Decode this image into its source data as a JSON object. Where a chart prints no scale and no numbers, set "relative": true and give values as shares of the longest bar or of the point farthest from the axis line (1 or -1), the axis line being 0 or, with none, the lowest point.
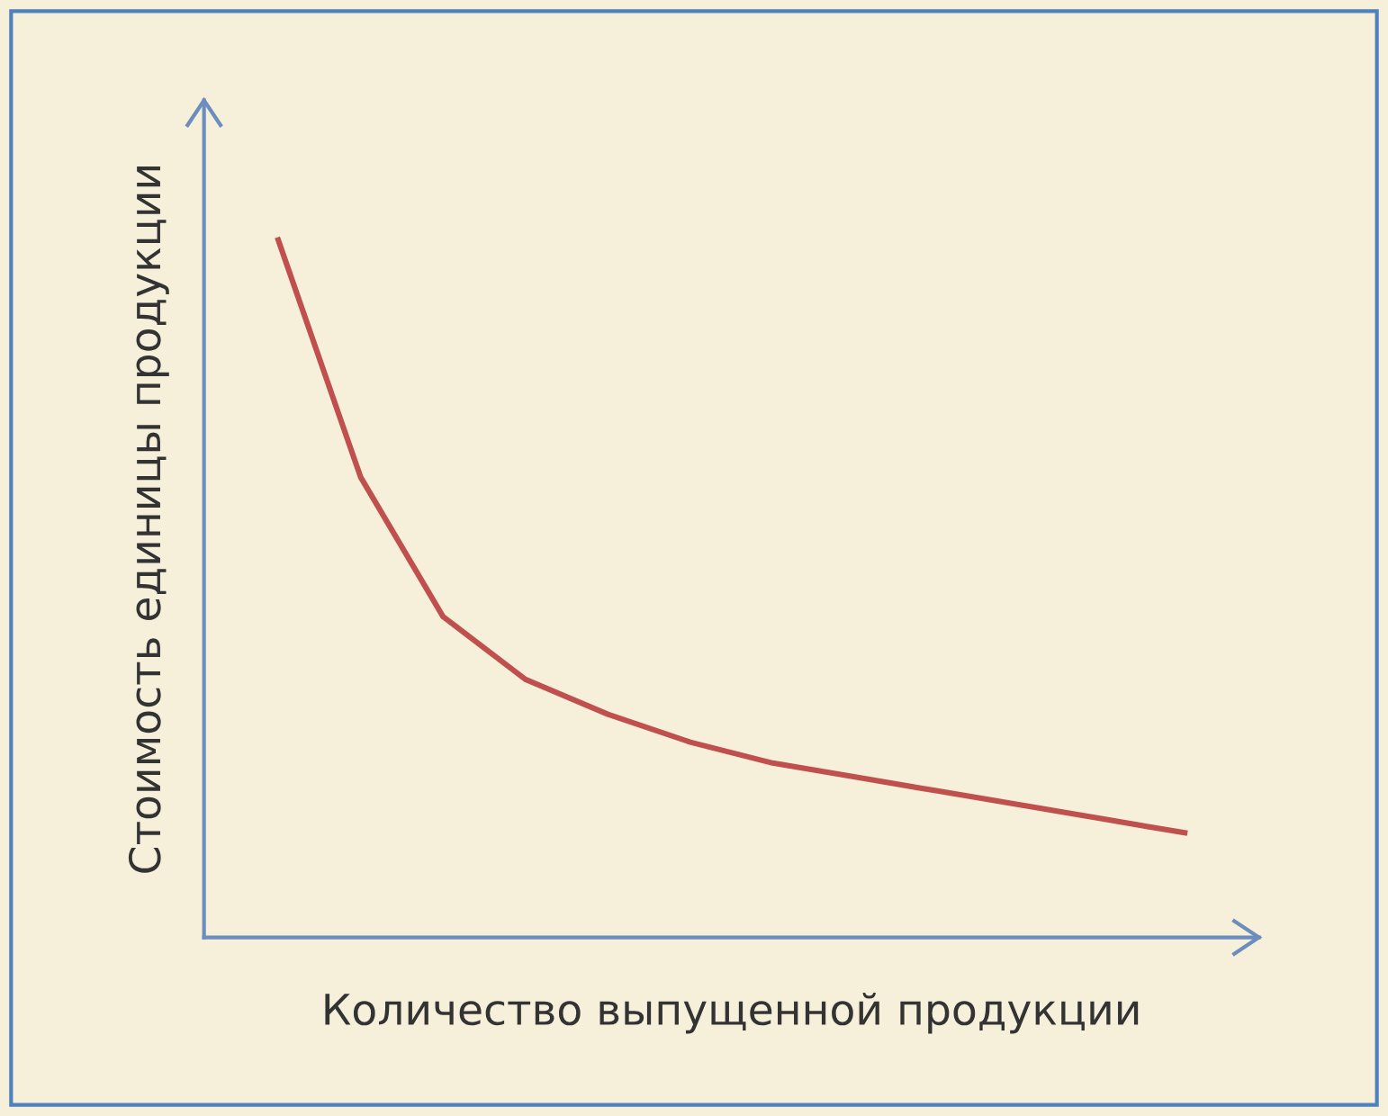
{
  "chart_data": {
    "type": "line",
    "relative": true,
    "xlabel": "Количество выпущенной продукции",
    "ylabel": "Стоимость единицы продукции",
    "categories": [
      null,
      null,
      null,
      null,
      null,
      null,
      null,
      null,
      null,
      null,
      null,
      null
    ],
    "series": [
      {
        "color": "#c0504d",
        "values": [
          1,
          0.66,
          0.46,
          0.37,
          0.32,
          0.28,
          0.25,
          0.23,
          0.21,
          0.19,
          0.17,
          0.15
        ]
      }
    ],
    "legend": false,
    "tick_labels": false
  }
}
